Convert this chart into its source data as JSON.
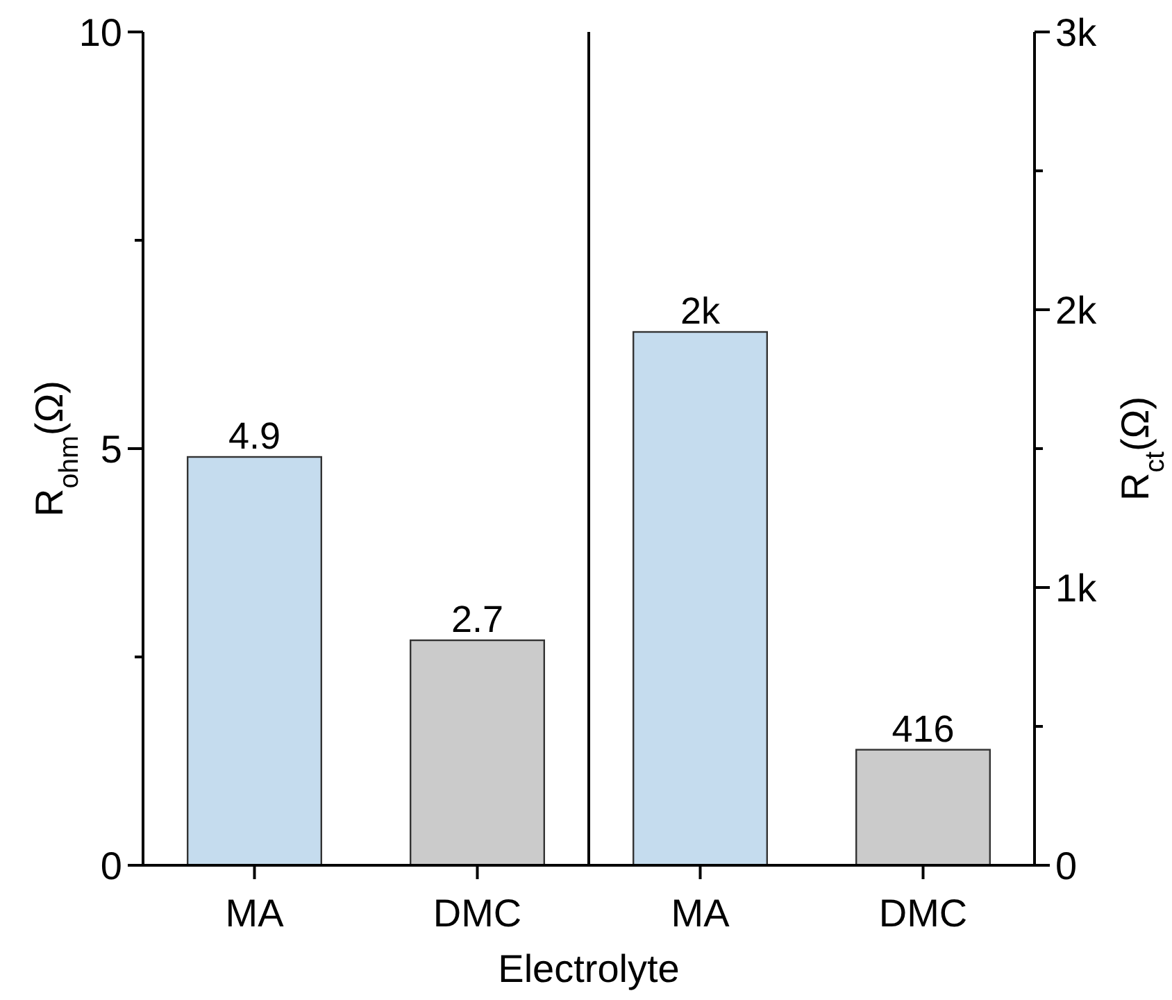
{
  "chart_data": [
    {
      "type": "bar",
      "xlabel": "Electrolyte",
      "ylabel": "R$_{ohm}$(Ω)",
      "categories": [
        "MA",
        "DMC"
      ],
      "series": [
        {
          "colors": [
            "#c5dcee",
            "#cbcbcb"
          ],
          "values": [
            4.9,
            2.7
          ]
        }
      ],
      "ylim": [
        0,
        10
      ],
      "yticks": [
        0,
        {
          "value": 2.5,
          "label": null
        },
        5,
        {
          "value": 7.5,
          "label": null
        },
        10
      ],
      "data_labels": true
    },
    {
      "type": "bar",
      "y2label": "R$_{ct}$(Ω)",
      "categories": [
        "MA",
        "DMC"
      ],
      "series": [
        {
          "colors": [
            "#c5dcee",
            "#cbcbcb"
          ],
          "values": [
            1920,
            416
          ],
          "value_labels": [
            "2k",
            "416"
          ],
          "axis": "y2"
        }
      ],
      "y2lim": [
        0,
        3000
      ],
      "y2ticks": [
        0,
        {
          "value": 500,
          "label": null
        },
        {
          "value": 1000,
          "label": "1k"
        },
        {
          "value": 1500,
          "label": null
        },
        {
          "value": 2000,
          "label": "2k"
        },
        {
          "value": 2500,
          "label": null
        },
        {
          "value": 3000,
          "label": "3k"
        }
      ]
    }
  ]
}
